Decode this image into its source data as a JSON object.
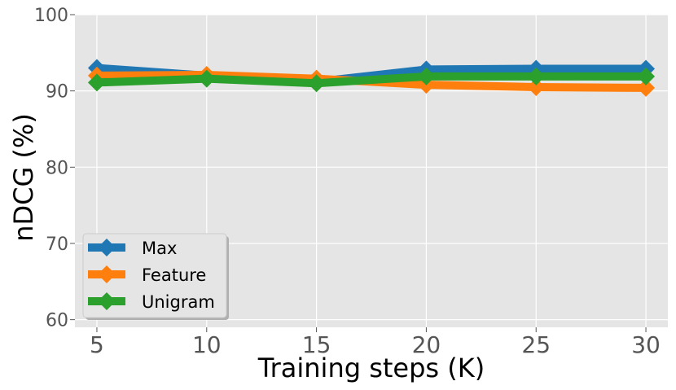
{
  "chart_data": {
    "type": "line",
    "xlabel": "Training steps (K)",
    "ylabel": "nDCG (%)",
    "x": [
      5,
      10,
      15,
      20,
      25,
      30
    ],
    "x_ticks": [
      "5",
      "10",
      "15",
      "20",
      "25",
      "30"
    ],
    "xlim": [
      4,
      31
    ],
    "y_ticks": [
      "60",
      "70",
      "80",
      "90",
      "100"
    ],
    "ylim": [
      59,
      100
    ],
    "grid": true,
    "legend_position": "lower-left",
    "series": [
      {
        "name": "Max",
        "color": "#1f77b4",
        "marker": "diamond",
        "values": [
          93.0,
          92.0,
          91.2,
          92.8,
          92.9,
          92.9
        ]
      },
      {
        "name": "Feature",
        "color": "#ff7f0e",
        "marker": "diamond",
        "values": [
          92.0,
          92.1,
          91.6,
          90.8,
          90.5,
          90.4
        ]
      },
      {
        "name": "Unigram",
        "color": "#2ca02c",
        "marker": "diamond",
        "values": [
          91.1,
          91.6,
          91.0,
          91.9,
          91.9,
          91.9
        ]
      }
    ]
  }
}
